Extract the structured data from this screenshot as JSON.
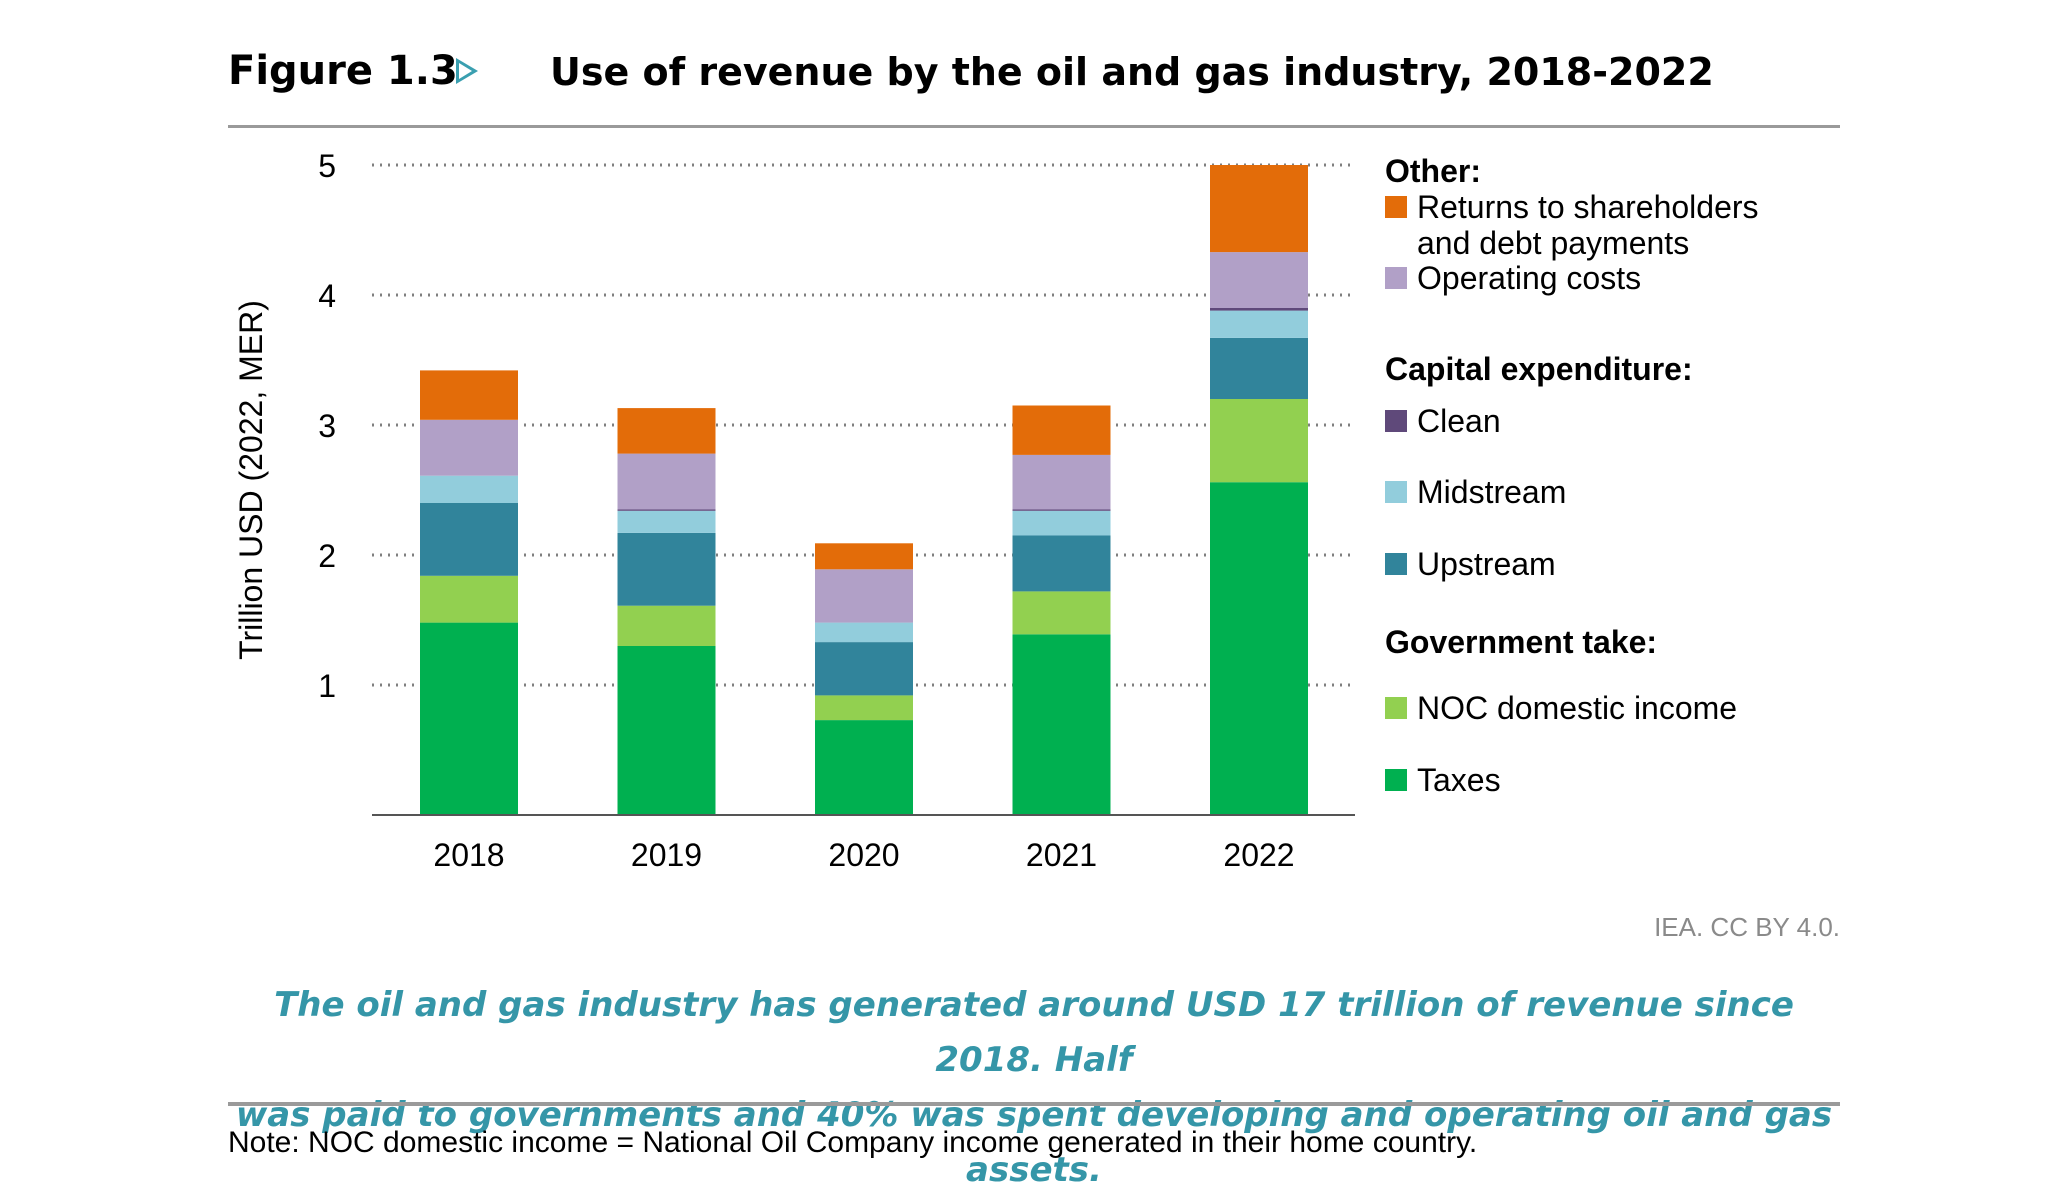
{
  "header": {
    "figure_label": "Figure 1.3",
    "arrow_icon": "triangle-right-outline",
    "title": "Use of revenue by the oil and gas industry, 2018-2022"
  },
  "credit": "IEA. CC BY 4.0.",
  "caption_line1": "The oil and gas industry has generated around USD 17 trillion of revenue since 2018. Half",
  "caption_line2": "was paid to governments and 40% was spent developing and operating oil and gas assets.",
  "note": "Note: NOC domestic income = National Oil Company income generated in their home country.",
  "colors": {
    "accent": "#3596a8",
    "rule": "#9a9a9a",
    "grid": "#7f7f7f"
  },
  "chart_data": {
    "type": "bar",
    "stacked": true,
    "categories": [
      "2018",
      "2019",
      "2020",
      "2021",
      "2022"
    ],
    "ylabel": "Trillion USD (2022, MER)",
    "ylim": [
      0,
      5
    ],
    "yticks": [
      "1",
      "2",
      "3",
      "4",
      "5"
    ],
    "grid": "dotted horizontal",
    "legend_position": "right",
    "legend_groups": [
      {
        "heading": "Other:",
        "keys": [
          "returns",
          "operating"
        ]
      },
      {
        "heading": "Capital expenditure:",
        "keys": [
          "clean",
          "midstream",
          "upstream"
        ]
      },
      {
        "heading": "Government take:",
        "keys": [
          "noc",
          "taxes"
        ]
      }
    ],
    "series": [
      {
        "key": "taxes",
        "name": "Taxes",
        "color": "#00b050",
        "values": [
          1.48,
          1.3,
          0.73,
          1.39,
          2.56
        ]
      },
      {
        "key": "noc",
        "name": "NOC domestic income",
        "color": "#92d050",
        "values": [
          0.36,
          0.31,
          0.19,
          0.33,
          0.64
        ]
      },
      {
        "key": "upstream",
        "name": "Upstream",
        "color": "#31849b",
        "values": [
          0.56,
          0.56,
          0.41,
          0.43,
          0.47
        ]
      },
      {
        "key": "midstream",
        "name": "Midstream",
        "color": "#92cddc",
        "values": [
          0.21,
          0.17,
          0.15,
          0.19,
          0.21
        ]
      },
      {
        "key": "clean",
        "name": "Clean",
        "color": "#5f497a",
        "values": [
          0.0,
          0.01,
          0.0,
          0.01,
          0.02
        ]
      },
      {
        "key": "operating",
        "name": "Operating costs",
        "color": "#b1a0c7",
        "values": [
          0.43,
          0.43,
          0.41,
          0.42,
          0.43
        ]
      },
      {
        "key": "returns",
        "name": "Returns to shareholders and debt payments",
        "color": "#e36c09",
        "values": [
          0.38,
          0.35,
          0.2,
          0.38,
          0.67
        ]
      }
    ]
  }
}
